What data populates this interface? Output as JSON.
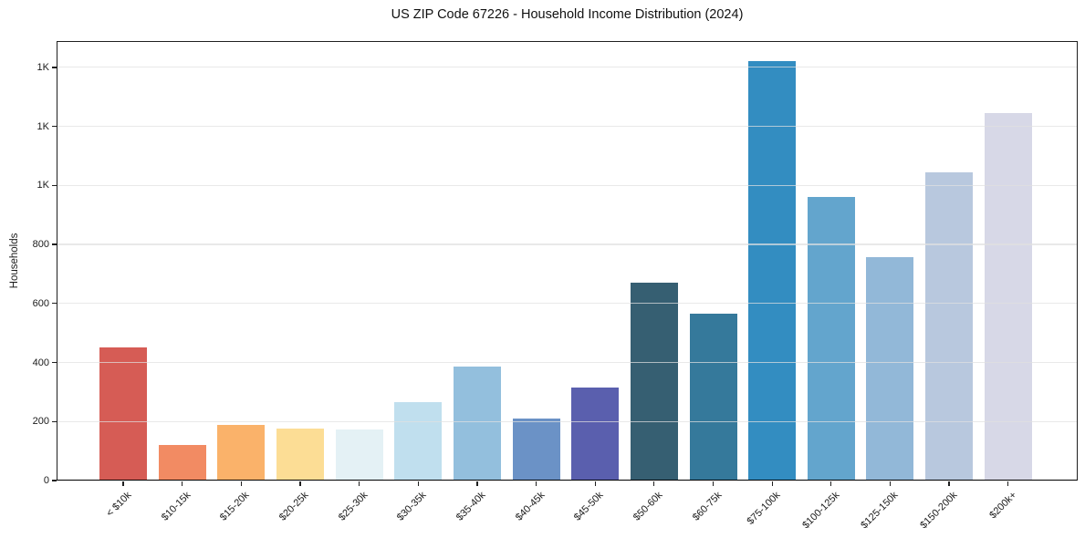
{
  "title": "US ZIP Code 67226 - Household Income Distribution (2024)",
  "chart_data": {
    "type": "bar",
    "title": "US ZIP Code 67226 - Household Income Distribution (2024)",
    "xlabel": "",
    "ylabel": "Households",
    "ylim": [
      0,
      1489
    ],
    "grid": true,
    "legend": "none",
    "x_tick_rotation": 45,
    "y_ticks": [
      {
        "value": 0,
        "label": "0"
      },
      {
        "value": 200,
        "label": "200"
      },
      {
        "value": 400,
        "label": "400"
      },
      {
        "value": 600,
        "label": "600"
      },
      {
        "value": 800,
        "label": "800"
      },
      {
        "value": 1000,
        "label": "1K"
      },
      {
        "value": 1200,
        "label": "1K"
      },
      {
        "value": 1400,
        "label": "1K"
      }
    ],
    "categories": [
      "< $10k",
      "$10-15k",
      "$15-20k",
      "$20-25k",
      "$25-30k",
      "$30-35k",
      "$35-40k",
      "$40-45k",
      "$45-50k",
      "$50-60k",
      "$60-75k",
      "$75-100k",
      "$100-125k",
      "$125-150k",
      "$150-200k",
      "$200k+"
    ],
    "values": [
      450,
      122,
      190,
      177,
      172,
      267,
      387,
      209,
      316,
      670,
      565,
      1422,
      960,
      757,
      1043,
      1246
    ],
    "bar_colors": [
      "#d65c55",
      "#f28b63",
      "#fab26a",
      "#fcdd95",
      "#e4f1f5",
      "#c0dfee",
      "#93bfdd",
      "#6b92c6",
      "#5a5fae",
      "#365f72",
      "#35799b",
      "#338dc1",
      "#63a5cd",
      "#92b8d8",
      "#b8c8de",
      "#d7d8e7"
    ],
    "colors": {
      "background": "#ffffff",
      "grid": "#e0e0e0",
      "spine": "#1f1f1f",
      "text": "#1a1a1a"
    }
  }
}
